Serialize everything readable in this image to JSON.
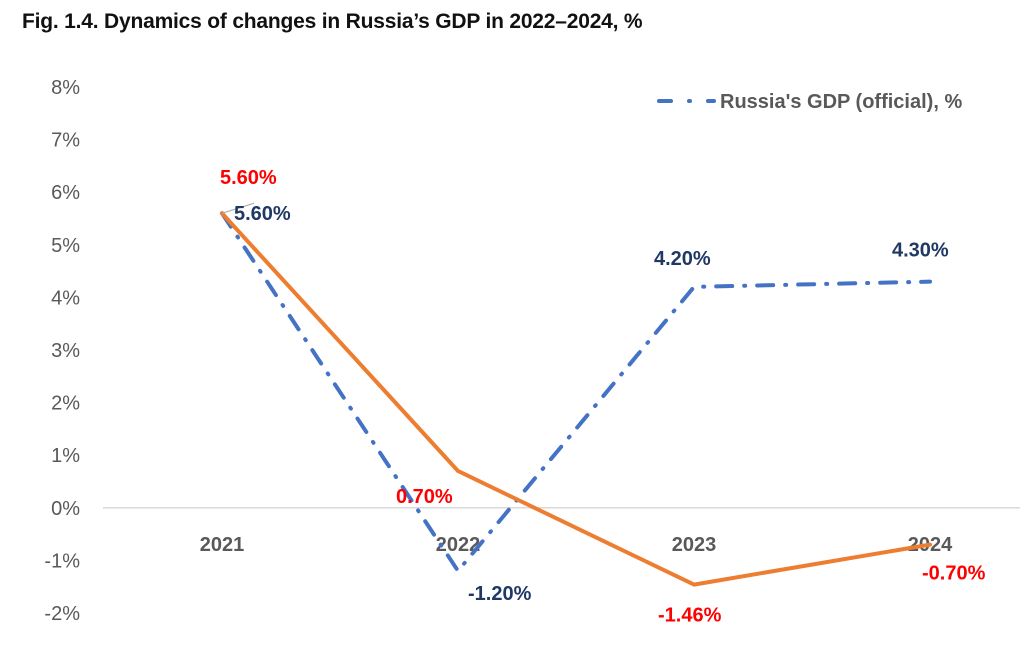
{
  "chart_data": {
    "type": "line",
    "title": "Fig. 1.4. Dynamics of changes in Russia’s GDP in 2022–2024, %",
    "xlabel": "",
    "ylabel": "",
    "categories": [
      "2021",
      "2022",
      "2023",
      "2024"
    ],
    "ylim": [
      -2,
      8
    ],
    "yticks": [
      "8%",
      "7%",
      "6%",
      "5%",
      "4%",
      "3%",
      "2%",
      "1%",
      "0%",
      "-1%",
      "-2%"
    ],
    "ytick_values": [
      8,
      7,
      6,
      5,
      4,
      3,
      2,
      1,
      0,
      -1,
      -2
    ],
    "grid": false,
    "legend_position": "top-right",
    "series": [
      {
        "name": "Russia's GDP (official), %",
        "values": [
          5.6,
          -1.2,
          4.2,
          4.3
        ],
        "labels": [
          "5.60%",
          "-1.20%",
          "4.20%",
          "4.30%"
        ],
        "color": "#4472C4",
        "label_color": "#1F3864",
        "style": "dash-dot",
        "in_legend": true
      },
      {
        "name": "",
        "values": [
          5.6,
          0.7,
          -1.46,
          -0.7
        ],
        "labels": [
          "5.60%",
          "0.70%",
          "-1.46%",
          "-0.70%"
        ],
        "color": "#ED7D31",
        "label_color": "#FF0000",
        "style": "solid",
        "in_legend": false
      }
    ]
  }
}
